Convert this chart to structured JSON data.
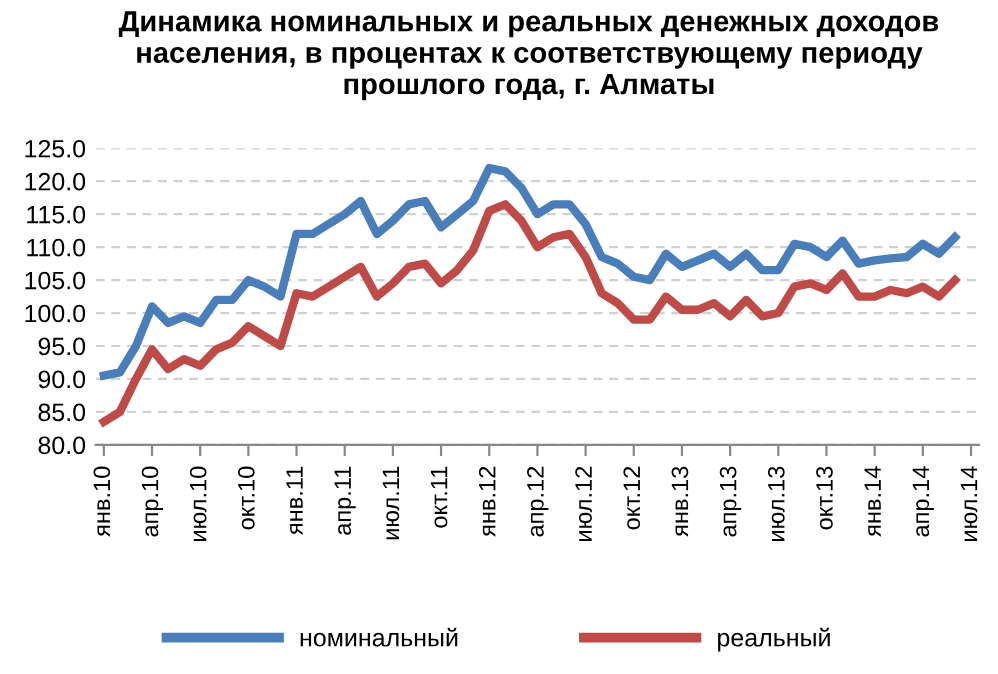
{
  "chart_data": {
    "type": "line",
    "title": "Динамика номинальных и реальных денежных доходов населения, в процентах к соответствующему периоду прошлого года, г. Алматы",
    "categories": [
      "янв.10",
      null,
      null,
      "апр.10",
      null,
      null,
      "июл.10",
      null,
      null,
      "окт.10",
      null,
      null,
      "янв.11",
      null,
      null,
      "апр.11",
      null,
      null,
      "июл.11",
      null,
      null,
      "окт.11",
      null,
      null,
      "янв.12",
      null,
      null,
      "апр.12",
      null,
      null,
      "июл.12",
      null,
      null,
      "окт.12",
      null,
      null,
      "янв.13",
      null,
      null,
      "апр.13",
      null,
      null,
      "июл.13",
      null,
      null,
      "окт.13",
      null,
      null,
      "янв.14",
      null,
      null,
      "апр.14",
      null,
      null,
      "июл.14"
    ],
    "series": [
      {
        "name": "номинальный",
        "color": "#4a7ebb",
        "values": [
          90.5,
          91,
          95,
          101,
          98.5,
          99.5,
          98.5,
          102,
          102,
          105,
          104,
          102.5,
          112,
          112,
          113.5,
          115,
          117,
          112,
          114,
          116.5,
          117,
          113,
          115,
          117,
          122,
          121.5,
          119,
          115,
          116.5,
          116.5,
          113.5,
          108.5,
          107.5,
          105.5,
          105,
          109,
          107,
          108,
          109,
          107,
          109,
          106.5,
          106.5,
          110.5,
          110,
          108.5,
          111,
          107.5,
          108,
          108.3,
          108.5,
          110.5,
          109,
          111.5,
          null
        ]
      },
      {
        "name": "реальный",
        "color": "#be4b48",
        "values": [
          83.5,
          85,
          90,
          94.5,
          91.5,
          93,
          92,
          94.5,
          95.5,
          98,
          96.5,
          95,
          103,
          102.5,
          104,
          105.5,
          107,
          102.5,
          104.5,
          107,
          107.5,
          104.5,
          106.5,
          109.5,
          115.5,
          116.5,
          114,
          110,
          111.5,
          112,
          108.5,
          103,
          101.5,
          99,
          99,
          102.5,
          100.5,
          100.5,
          101.5,
          99.5,
          102,
          99.5,
          100,
          104,
          104.5,
          103.5,
          106,
          102.5,
          102.5,
          103.5,
          103,
          104,
          102.5,
          105,
          null
        ]
      }
    ],
    "ylim": [
      80,
      125
    ],
    "yticks": [
      {
        "value": 80,
        "label": "80.0"
      },
      {
        "value": 85,
        "label": "85.0"
      },
      {
        "value": 90,
        "label": "90.0"
      },
      {
        "value": 95,
        "label": "95.0"
      },
      {
        "value": 100,
        "label": "100.0"
      },
      {
        "value": 105,
        "label": "105.0"
      },
      {
        "value": 110,
        "label": "110.0"
      },
      {
        "value": 115,
        "label": "115.0"
      },
      {
        "value": 120,
        "label": "120.0"
      },
      {
        "value": 125,
        "label": "125.0"
      }
    ],
    "grid": "y",
    "legend": "bottom",
    "marker": "none",
    "line_style": "solid"
  }
}
